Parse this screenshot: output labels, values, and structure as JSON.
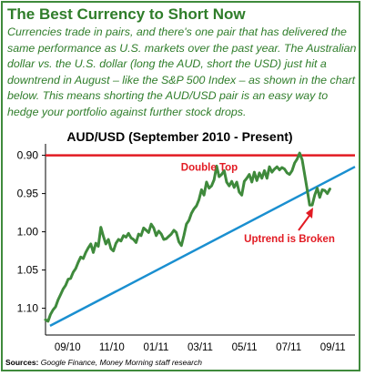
{
  "header": {
    "title": "The Best Currency to Short Now",
    "intro": "Currencies trade in pairs, and there's one pair that has delivered the same performance as U.S. markets over the past year. The Australian dollar vs. the U.S. dollar (long the AUD, short the USD) just hit a downtrend in August – like the S&P 500 Index – as shown in the chart below. This means shorting the AUD/USD pair is an easy way to hedge your portfolio against further stock drops."
  },
  "source": {
    "label": "Sources:",
    "text": "Google Finance, Money Morning staff research"
  },
  "chart_data": {
    "type": "line",
    "title": "AUD/USD (September 2010 - Present)",
    "xlabel": "",
    "ylabel": "",
    "x_ticks": [
      "09/10",
      "11/10",
      "01/11",
      "03/11",
      "05/11",
      "07/11",
      "09/11"
    ],
    "y_ticks": [
      "0.90",
      "0.95",
      "1.00",
      "1.05",
      "1.10"
    ],
    "y_axis_inverted": true,
    "xlim": [
      0,
      12.3
    ],
    "ylim": [
      1.135,
      0.885
    ],
    "grid": false,
    "colors": {
      "price": "#3f8a3c",
      "top": "#e21b23",
      "trend": "#1a8fd0",
      "axis": "#000000"
    },
    "series": [
      {
        "x": [
          0,
          0.1,
          0.2,
          0.3,
          0.4,
          0.5,
          0.6,
          0.7,
          0.8,
          0.9,
          1.0,
          1.1,
          1.2,
          1.3,
          1.4,
          1.5,
          1.6,
          1.7,
          1.8,
          1.9,
          2.0,
          2.1,
          2.2,
          2.3,
          2.4,
          2.5,
          2.6,
          2.7,
          2.8,
          2.9,
          3.0,
          3.1,
          3.2,
          3.3,
          3.4,
          3.5,
          3.6,
          3.7,
          3.8,
          3.9,
          4.0,
          4.1,
          4.2,
          4.3,
          4.4,
          4.5,
          4.6,
          4.7,
          4.8,
          4.9,
          5.0,
          5.1,
          5.2,
          5.3,
          5.4,
          5.5,
          5.6,
          5.7,
          5.8,
          5.9,
          6.0,
          6.1,
          6.2,
          6.3,
          6.4,
          6.5,
          6.6,
          6.7,
          6.8,
          6.9,
          7.0,
          7.1,
          7.2,
          7.3,
          7.4,
          7.5,
          7.6,
          7.7,
          7.8,
          7.9,
          8.0,
          8.1,
          8.2,
          8.3,
          8.4,
          8.5,
          8.6,
          8.7,
          8.8,
          8.9,
          9.0,
          9.1,
          9.2,
          9.3,
          9.4,
          9.5,
          9.6,
          9.7,
          9.8,
          9.9,
          10.0,
          10.1,
          10.2,
          10.3,
          10.4,
          10.5,
          10.6,
          10.7,
          10.8,
          10.9,
          11.0,
          11.1,
          11.2,
          11.3
        ],
        "values": [
          1.115,
          1.117,
          1.108,
          1.102,
          1.098,
          1.089,
          1.082,
          1.075,
          1.07,
          1.062,
          1.061,
          1.053,
          1.048,
          1.04,
          1.033,
          1.035,
          1.027,
          1.021,
          1.016,
          1.027,
          1.015,
          1.019,
          0.994,
          1.006,
          1.016,
          1.01,
          1.022,
          1.025,
          1.015,
          1.01,
          1.012,
          1.005,
          1.007,
          1.002,
          1.008,
          1.01,
          1.014,
          1.003,
          1.005,
          0.995,
          0.998,
          1.001,
          0.99,
          0.995,
          1.005,
          0.999,
          1.003,
          1.01,
          1.009,
          1.006,
          1.003,
          0.998,
          1.001,
          1.013,
          1.018,
          1.005,
          0.99,
          0.985,
          0.976,
          0.97,
          0.966,
          0.958,
          0.945,
          0.952,
          0.935,
          0.943,
          0.94,
          0.932,
          0.914,
          0.928,
          0.925,
          0.92,
          0.935,
          0.94,
          0.934,
          0.942,
          0.935,
          0.948,
          0.952,
          0.934,
          0.93,
          0.925,
          0.935,
          0.922,
          0.933,
          0.923,
          0.93,
          0.92,
          0.93,
          0.915,
          0.922,
          0.918,
          0.915,
          0.919,
          0.916,
          0.918,
          0.923,
          0.925,
          0.92,
          0.91,
          0.905,
          0.897,
          0.906,
          0.925,
          0.945,
          0.965,
          0.965,
          0.952,
          0.943,
          0.955,
          0.945,
          0.946,
          0.95,
          0.944
        ]
      }
    ],
    "reference_lines": [
      {
        "label": "Double Top",
        "kind": "horizontal",
        "y": 0.9
      },
      {
        "label": "",
        "kind": "trendline",
        "points": [
          [
            0.18,
            1.123
          ],
          [
            12.3,
            0.915
          ]
        ]
      }
    ],
    "annotations": [
      {
        "text": "Double Top",
        "near": "top line, center"
      },
      {
        "text": "Uptrend is Broken",
        "near": "trendline break, right"
      }
    ]
  }
}
